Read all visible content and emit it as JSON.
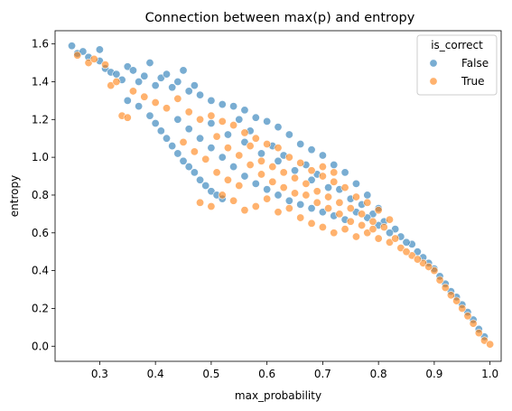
{
  "chart_data": {
    "type": "scatter",
    "title": "Connection between max(p) and entropy",
    "xlabel": "max_probability",
    "ylabel": "entropy",
    "xlim": [
      0.22,
      1.02
    ],
    "ylim": [
      -0.08,
      1.67
    ],
    "xticks": [
      "0.3",
      "0.4",
      "0.5",
      "0.6",
      "0.7",
      "0.8",
      "0.9",
      "1.0"
    ],
    "yticks": [
      "0.0",
      "0.2",
      "0.4",
      "0.6",
      "0.8",
      "1.0",
      "1.2",
      "1.4",
      "1.6"
    ],
    "grid": false,
    "legend": {
      "title": "is_correct",
      "placement": "top-right"
    },
    "series": [
      {
        "name": "False",
        "color": "#1f77b4",
        "points": [
          [
            0.25,
            1.59
          ],
          [
            0.26,
            1.55
          ],
          [
            0.27,
            1.56
          ],
          [
            0.28,
            1.53
          ],
          [
            0.3,
            1.57
          ],
          [
            0.3,
            1.51
          ],
          [
            0.31,
            1.47
          ],
          [
            0.32,
            1.45
          ],
          [
            0.33,
            1.44
          ],
          [
            0.34,
            1.41
          ],
          [
            0.35,
            1.48
          ],
          [
            0.36,
            1.46
          ],
          [
            0.37,
            1.4
          ],
          [
            0.38,
            1.43
          ],
          [
            0.39,
            1.5
          ],
          [
            0.4,
            1.38
          ],
          [
            0.41,
            1.42
          ],
          [
            0.42,
            1.44
          ],
          [
            0.43,
            1.37
          ],
          [
            0.44,
            1.4
          ],
          [
            0.45,
            1.46
          ],
          [
            0.46,
            1.35
          ],
          [
            0.47,
            1.38
          ],
          [
            0.48,
            1.33
          ],
          [
            0.5,
            1.3
          ],
          [
            0.52,
            1.28
          ],
          [
            0.54,
            1.27
          ],
          [
            0.56,
            1.25
          ],
          [
            0.58,
            1.21
          ],
          [
            0.6,
            1.19
          ],
          [
            0.62,
            1.16
          ],
          [
            0.64,
            1.12
          ],
          [
            0.66,
            1.07
          ],
          [
            0.68,
            1.04
          ],
          [
            0.7,
            1.01
          ],
          [
            0.72,
            0.96
          ],
          [
            0.74,
            0.92
          ],
          [
            0.76,
            0.86
          ],
          [
            0.78,
            0.8
          ],
          [
            0.8,
            0.73
          ],
          [
            0.35,
            1.3
          ],
          [
            0.37,
            1.27
          ],
          [
            0.39,
            1.22
          ],
          [
            0.4,
            1.18
          ],
          [
            0.41,
            1.14
          ],
          [
            0.42,
            1.1
          ],
          [
            0.43,
            1.06
          ],
          [
            0.44,
            1.02
          ],
          [
            0.45,
            0.98
          ],
          [
            0.46,
            0.95
          ],
          [
            0.47,
            0.92
          ],
          [
            0.48,
            0.88
          ],
          [
            0.49,
            0.85
          ],
          [
            0.5,
            0.82
          ],
          [
            0.51,
            0.8
          ],
          [
            0.52,
            0.78
          ],
          [
            0.44,
            1.2
          ],
          [
            0.46,
            1.15
          ],
          [
            0.48,
            1.1
          ],
          [
            0.5,
            1.05
          ],
          [
            0.52,
            1.0
          ],
          [
            0.54,
            0.95
          ],
          [
            0.56,
            0.9
          ],
          [
            0.58,
            0.86
          ],
          [
            0.6,
            0.83
          ],
          [
            0.62,
            0.8
          ],
          [
            0.64,
            0.77
          ],
          [
            0.66,
            0.75
          ],
          [
            0.68,
            0.73
          ],
          [
            0.7,
            0.71
          ],
          [
            0.72,
            0.69
          ],
          [
            0.74,
            0.67
          ],
          [
            0.5,
            1.18
          ],
          [
            0.53,
            1.12
          ],
          [
            0.56,
            1.08
          ],
          [
            0.59,
            1.02
          ],
          [
            0.62,
            0.98
          ],
          [
            0.65,
            0.93
          ],
          [
            0.68,
            0.88
          ],
          [
            0.71,
            0.84
          ],
          [
            0.55,
            1.2
          ],
          [
            0.57,
            1.14
          ],
          [
            0.61,
            1.06
          ],
          [
            0.63,
            1.01
          ],
          [
            0.67,
            0.96
          ],
          [
            0.69,
            0.91
          ],
          [
            0.73,
            0.83
          ],
          [
            0.75,
            0.78
          ],
          [
            0.77,
            0.75
          ],
          [
            0.79,
            0.7
          ],
          [
            0.81,
            0.66
          ],
          [
            0.83,
            0.62
          ],
          [
            0.84,
            0.58
          ],
          [
            0.86,
            0.54
          ],
          [
            0.87,
            0.5
          ],
          [
            0.88,
            0.47
          ],
          [
            0.89,
            0.44
          ],
          [
            0.9,
            0.41
          ],
          [
            0.91,
            0.37
          ],
          [
            0.92,
            0.33
          ],
          [
            0.93,
            0.29
          ],
          [
            0.94,
            0.26
          ],
          [
            0.95,
            0.22
          ],
          [
            0.96,
            0.18
          ],
          [
            0.97,
            0.14
          ],
          [
            0.98,
            0.09
          ],
          [
            0.99,
            0.05
          ],
          [
            0.82,
            0.6
          ],
          [
            0.85,
            0.55
          ],
          [
            0.8,
            0.64
          ],
          [
            0.78,
            0.68
          ],
          [
            0.76,
            0.71
          ]
        ]
      },
      {
        "name": "True",
        "color": "#ff7f0e",
        "points": [
          [
            0.26,
            1.54
          ],
          [
            0.28,
            1.5
          ],
          [
            0.29,
            1.52
          ],
          [
            0.31,
            1.49
          ],
          [
            0.32,
            1.38
          ],
          [
            0.33,
            1.4
          ],
          [
            0.34,
            1.22
          ],
          [
            0.35,
            1.21
          ],
          [
            0.36,
            1.35
          ],
          [
            0.38,
            1.32
          ],
          [
            0.4,
            1.29
          ],
          [
            0.42,
            1.26
          ],
          [
            0.44,
            1.31
          ],
          [
            0.46,
            1.24
          ],
          [
            0.48,
            1.2
          ],
          [
            0.5,
            1.22
          ],
          [
            0.52,
            1.19
          ],
          [
            0.54,
            1.17
          ],
          [
            0.56,
            1.13
          ],
          [
            0.58,
            1.1
          ],
          [
            0.6,
            1.07
          ],
          [
            0.62,
            1.05
          ],
          [
            0.64,
            1.0
          ],
          [
            0.66,
            0.97
          ],
          [
            0.68,
            0.93
          ],
          [
            0.7,
            0.9
          ],
          [
            0.72,
            0.87
          ],
          [
            0.74,
            0.84
          ],
          [
            0.76,
            0.79
          ],
          [
            0.78,
            0.76
          ],
          [
            0.8,
            0.72
          ],
          [
            0.82,
            0.67
          ],
          [
            0.48,
            0.76
          ],
          [
            0.5,
            0.74
          ],
          [
            0.52,
            0.8
          ],
          [
            0.54,
            0.77
          ],
          [
            0.56,
            0.72
          ],
          [
            0.58,
            0.74
          ],
          [
            0.6,
            0.78
          ],
          [
            0.62,
            0.71
          ],
          [
            0.64,
            0.73
          ],
          [
            0.66,
            0.68
          ],
          [
            0.68,
            0.65
          ],
          [
            0.7,
            0.63
          ],
          [
            0.72,
            0.6
          ],
          [
            0.74,
            0.62
          ],
          [
            0.76,
            0.58
          ],
          [
            0.78,
            0.6
          ],
          [
            0.8,
            0.57
          ],
          [
            0.82,
            0.55
          ],
          [
            0.84,
            0.52
          ],
          [
            0.86,
            0.48
          ],
          [
            0.88,
            0.44
          ],
          [
            0.9,
            0.4
          ],
          [
            0.91,
            0.35
          ],
          [
            0.92,
            0.31
          ],
          [
            0.93,
            0.27
          ],
          [
            0.94,
            0.24
          ],
          [
            0.95,
            0.2
          ],
          [
            0.96,
            0.16
          ],
          [
            0.97,
            0.12
          ],
          [
            0.98,
            0.07
          ],
          [
            0.99,
            0.03
          ],
          [
            1.0,
            0.01
          ],
          [
            0.51,
            0.92
          ],
          [
            0.53,
            0.88
          ],
          [
            0.55,
            0.85
          ],
          [
            0.57,
            0.96
          ],
          [
            0.59,
            0.91
          ],
          [
            0.61,
            0.87
          ],
          [
            0.63,
            0.84
          ],
          [
            0.65,
            0.81
          ],
          [
            0.67,
            0.86
          ],
          [
            0.69,
            0.82
          ],
          [
            0.71,
            0.79
          ],
          [
            0.73,
            0.76
          ],
          [
            0.75,
            0.73
          ],
          [
            0.77,
            0.7
          ],
          [
            0.79,
            0.66
          ],
          [
            0.81,
            0.63
          ],
          [
            0.45,
            1.08
          ],
          [
            0.47,
            1.03
          ],
          [
            0.49,
            0.99
          ],
          [
            0.51,
            1.11
          ],
          [
            0.53,
            1.05
          ],
          [
            0.55,
            1.01
          ],
          [
            0.57,
            1.06
          ],
          [
            0.59,
            0.98
          ],
          [
            0.61,
            0.95
          ],
          [
            0.63,
            0.92
          ],
          [
            0.65,
            0.89
          ],
          [
            0.67,
            0.8
          ],
          [
            0.69,
            0.76
          ],
          [
            0.71,
            0.73
          ],
          [
            0.73,
            0.7
          ],
          [
            0.75,
            0.66
          ],
          [
            0.77,
            0.64
          ],
          [
            0.79,
            0.62
          ],
          [
            0.83,
            0.57
          ],
          [
            0.85,
            0.5
          ],
          [
            0.87,
            0.46
          ],
          [
            0.89,
            0.42
          ],
          [
            0.72,
            0.92
          ],
          [
            0.7,
            0.95
          ]
        ]
      }
    ]
  }
}
